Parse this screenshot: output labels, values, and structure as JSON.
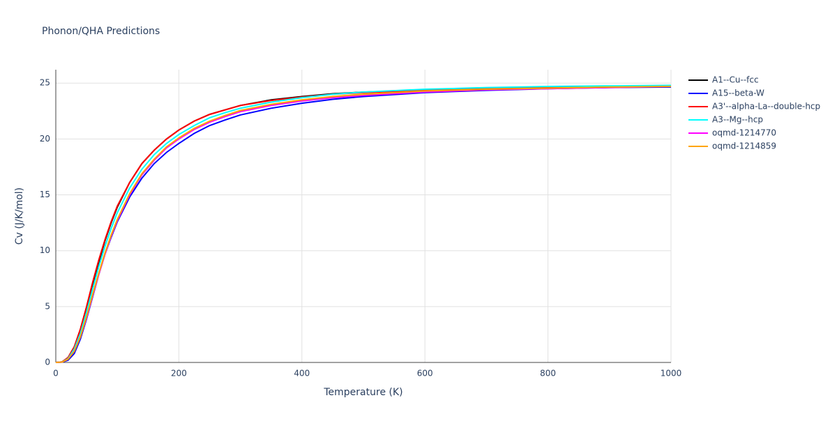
{
  "chart_data": {
    "type": "line",
    "title": "Phonon/QHA Predictions",
    "x_label": "Temperature (K)",
    "y_label": "Cv (J/K/mol)",
    "x": [
      0,
      10,
      20,
      30,
      40,
      50,
      60,
      70,
      80,
      90,
      100,
      120,
      140,
      160,
      180,
      200,
      225,
      250,
      275,
      300,
      350,
      400,
      450,
      500,
      600,
      700,
      800,
      900,
      1000
    ],
    "series": [
      {
        "name": "A1--Cu--fcc",
        "color": "#000000",
        "values": [
          0,
          0.05,
          0.4,
          1.3,
          2.8,
          4.8,
          7.0,
          9.0,
          10.9,
          12.5,
          13.9,
          16.1,
          17.8,
          19.0,
          20.0,
          20.8,
          21.6,
          22.2,
          22.6,
          23.0,
          23.5,
          23.8,
          24.05,
          24.2,
          24.4,
          24.55,
          24.65,
          24.7,
          24.75
        ]
      },
      {
        "name": "A15--beta-W",
        "color": "#0000ff",
        "values": [
          0,
          0.02,
          0.2,
          0.8,
          2.1,
          3.9,
          5.9,
          7.9,
          9.7,
          11.2,
          12.6,
          14.8,
          16.5,
          17.8,
          18.8,
          19.6,
          20.5,
          21.2,
          21.7,
          22.15,
          22.75,
          23.2,
          23.55,
          23.8,
          24.15,
          24.35,
          24.5,
          24.6,
          24.65
        ]
      },
      {
        "name": "A3'--alpha-La--double-hcp",
        "color": "#ff0000",
        "values": [
          0,
          0.05,
          0.45,
          1.4,
          3.0,
          5.0,
          7.2,
          9.2,
          11.0,
          12.6,
          14.0,
          16.1,
          17.8,
          19.0,
          20.0,
          20.8,
          21.6,
          22.2,
          22.6,
          23.0,
          23.45,
          23.75,
          24.0,
          24.15,
          24.35,
          24.5,
          24.6,
          24.65,
          24.7
        ]
      },
      {
        "name": "A3--Mg--hcp",
        "color": "#00ffff",
        "values": [
          0,
          0.04,
          0.35,
          1.2,
          2.6,
          4.5,
          6.6,
          8.6,
          10.4,
          12.0,
          13.4,
          15.6,
          17.3,
          18.6,
          19.6,
          20.4,
          21.2,
          21.9,
          22.35,
          22.75,
          23.3,
          23.7,
          24.0,
          24.2,
          24.45,
          24.6,
          24.7,
          24.75,
          24.8
        ]
      },
      {
        "name": "oqmd-1214770",
        "color": "#ff00ff",
        "values": [
          0,
          0.03,
          0.3,
          1.0,
          2.3,
          4.0,
          6.0,
          7.9,
          9.7,
          11.3,
          12.7,
          15.0,
          16.8,
          18.1,
          19.2,
          20.0,
          20.85,
          21.5,
          22.0,
          22.45,
          23.0,
          23.4,
          23.7,
          23.9,
          24.2,
          24.4,
          24.5,
          24.6,
          24.7
        ]
      },
      {
        "name": "oqmd-1214859",
        "color": "#ffa500",
        "values": [
          0,
          0.03,
          0.3,
          1.0,
          2.3,
          4.1,
          6.1,
          8.0,
          9.8,
          11.4,
          12.8,
          15.1,
          16.9,
          18.2,
          19.3,
          20.1,
          20.95,
          21.6,
          22.1,
          22.55,
          23.1,
          23.5,
          23.8,
          24.0,
          24.3,
          24.45,
          24.55,
          24.65,
          24.7
        ]
      }
    ],
    "xlim": [
      0,
      1000
    ],
    "xticks": [
      0,
      200,
      400,
      600,
      800,
      1000
    ],
    "ylim": [
      0,
      26.2
    ],
    "yticks": [
      0,
      5,
      10,
      15,
      20,
      25
    ],
    "grid": true
  }
}
